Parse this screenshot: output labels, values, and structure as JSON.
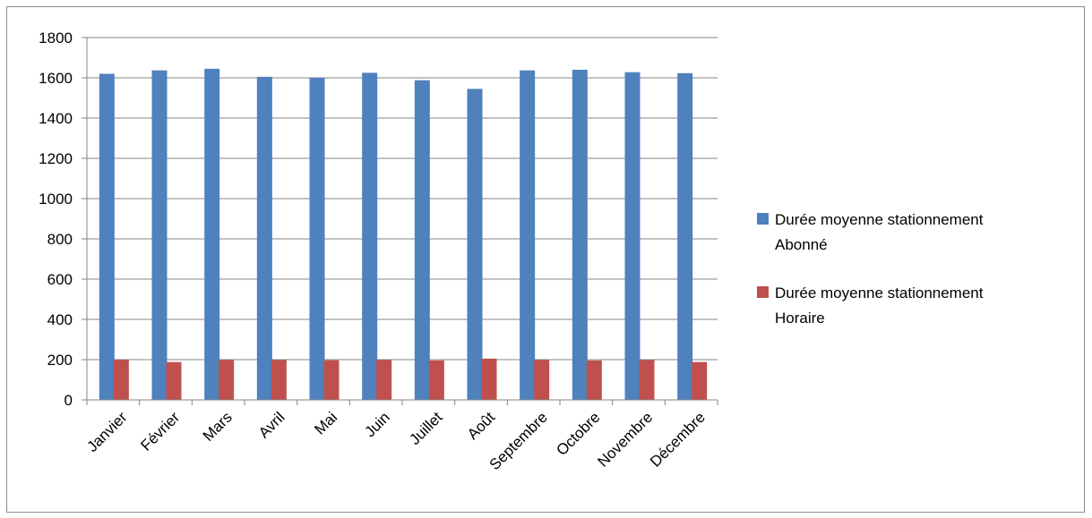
{
  "chart_data": {
    "type": "bar",
    "title": "",
    "xlabel": "",
    "ylabel": "",
    "ylim": [
      0,
      1800
    ],
    "yticks": [
      0,
      200,
      400,
      600,
      800,
      1000,
      1200,
      1400,
      1600,
      1800
    ],
    "grid": true,
    "legend_position": "right",
    "categories": [
      "Janvier",
      "Février",
      "Mars",
      "Avril",
      "Mai",
      "Juin",
      "Juillet",
      "Août",
      "Septembre",
      "Octobre",
      "Novembre",
      "Décembre"
    ],
    "series": [
      {
        "name": "Durée moyenne stationnement Abonné",
        "legend_lines": [
          "Durée moyenne stationnement",
          "Abonné"
        ],
        "color": "#4f81bd",
        "values": [
          1620,
          1637,
          1645,
          1605,
          1600,
          1625,
          1588,
          1545,
          1637,
          1640,
          1628,
          1623
        ]
      },
      {
        "name": "Durée moyenne stationnement Horaire",
        "legend_lines": [
          "Durée moyenne stationnement",
          "Horaire"
        ],
        "color": "#c0504d",
        "values": [
          200,
          188,
          198,
          198,
          197,
          198,
          196,
          205,
          198,
          196,
          198,
          188
        ]
      }
    ]
  }
}
